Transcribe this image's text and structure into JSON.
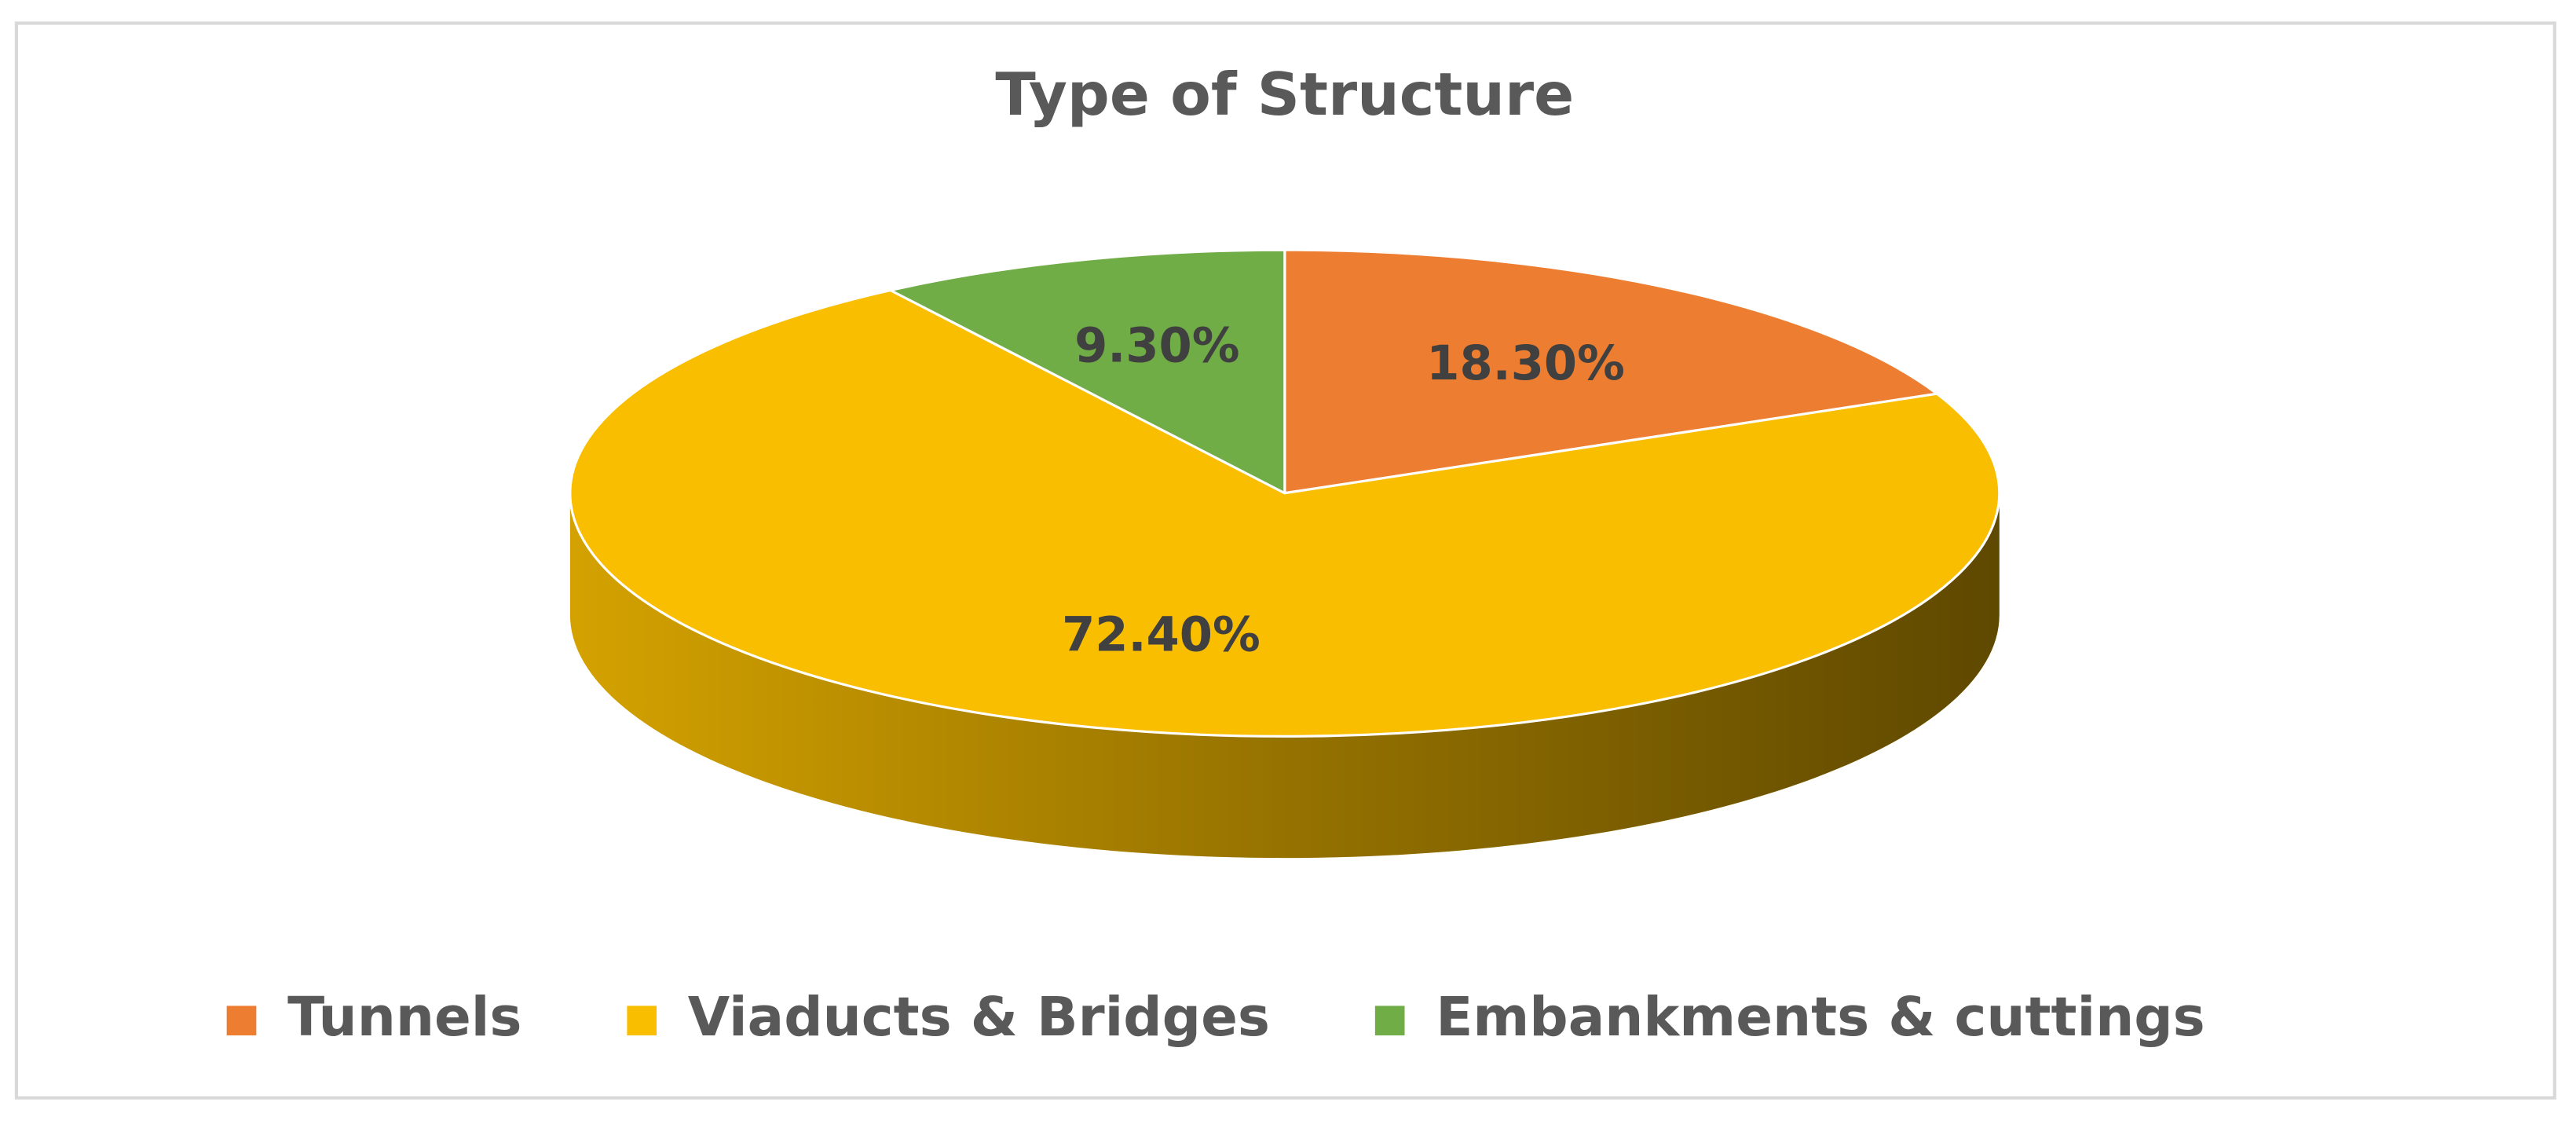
{
  "chart_data": {
    "type": "pie",
    "title": "Type of Structure",
    "categories": [
      "Tunnels",
      "Viaducts & Bridges",
      "Embankments & cuttings"
    ],
    "values": [
      18.3,
      72.4,
      9.3
    ],
    "value_labels": [
      "18.30%",
      "72.40%",
      "9.30%"
    ],
    "colors": [
      "#ED7D31",
      "#F9BE00",
      "#70AD47"
    ],
    "legend": "bottom"
  }
}
